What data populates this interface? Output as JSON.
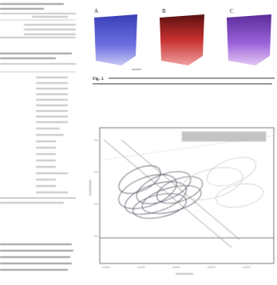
{
  "figure": {
    "panels": [
      "A",
      "B",
      "C"
    ],
    "caption_label": "Fig. 3."
  }
}
